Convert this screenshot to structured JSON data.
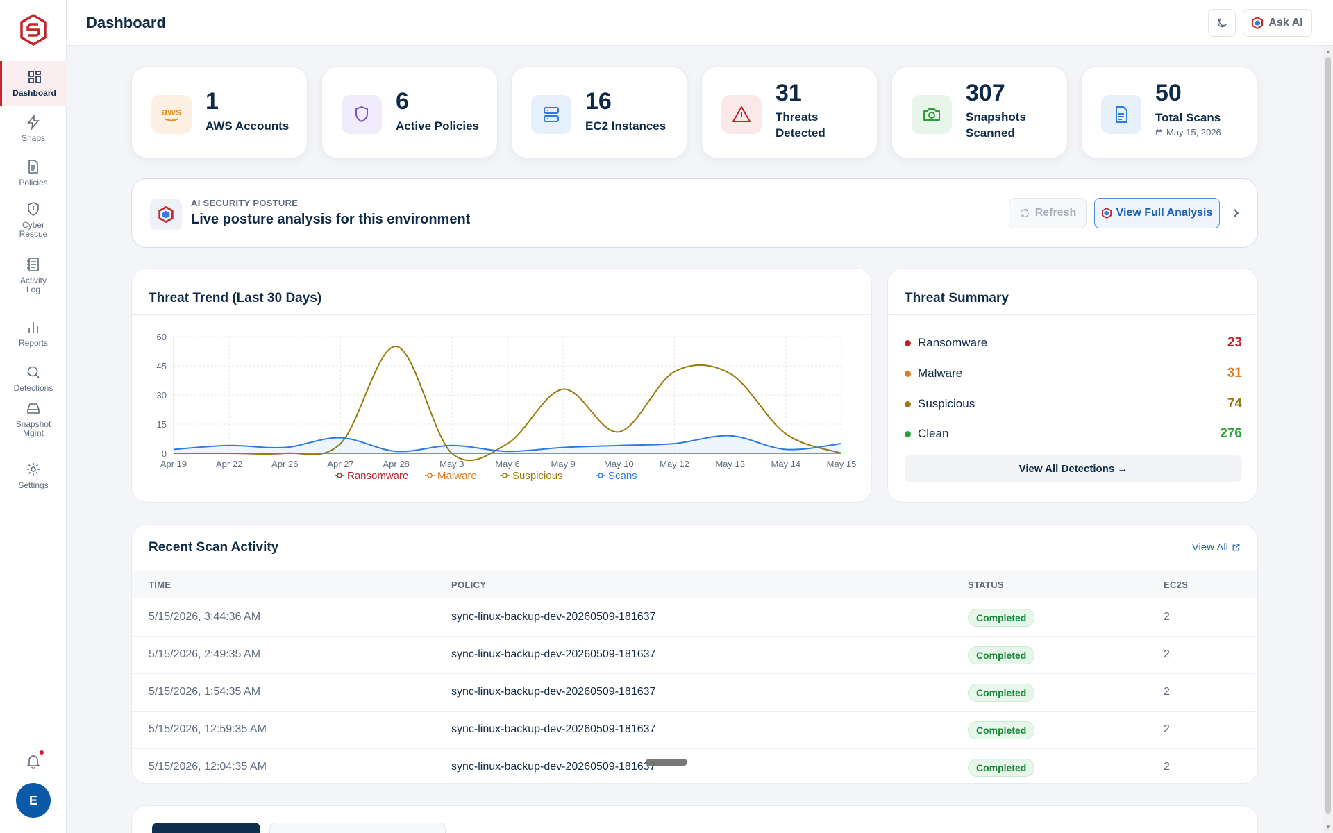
{
  "header": {
    "title": "Dashboard",
    "ask_ai_label": "Ask AI"
  },
  "sidebar": {
    "items": [
      {
        "label": "Dashboard",
        "icon": "grid-icon",
        "active": true
      },
      {
        "label": "Snaps",
        "icon": "bolt-icon"
      },
      {
        "label": "Policies",
        "icon": "document-icon"
      },
      {
        "label": "Cyber\nRescue",
        "icon": "shield-alert-icon"
      },
      {
        "label": "Activity\nLog",
        "icon": "log-icon"
      },
      {
        "label": "Reports",
        "icon": "bar-chart-icon"
      },
      {
        "label": "Detections",
        "icon": "search-icon"
      },
      {
        "label": "Snapshot\nMgmt",
        "icon": "drive-icon"
      },
      {
        "label": "Settings",
        "icon": "gear-icon"
      }
    ],
    "avatar_initial": "E"
  },
  "stats": [
    {
      "value": "1",
      "label": "AWS Accounts",
      "icon": "aws-icon",
      "icon_text": "aws"
    },
    {
      "value": "6",
      "label": "Active Policies",
      "icon": "shield-icon"
    },
    {
      "value": "16",
      "label": "EC2 Instances",
      "icon": "server-icon"
    },
    {
      "value": "31",
      "label": "Threats Detected",
      "icon": "warning-icon"
    },
    {
      "value": "307",
      "label": "Snapshots Scanned",
      "icon": "camera-icon"
    },
    {
      "value": "50",
      "label": "Total Scans",
      "icon": "file-icon",
      "date": "May 15, 2026"
    }
  ],
  "posture": {
    "kicker": "AI SECURITY POSTURE",
    "title": "Live posture analysis for this environment",
    "refresh_label": "Refresh",
    "view_label": "View Full Analysis"
  },
  "threat_trend": {
    "title": "Threat Trend (Last 30 Days)"
  },
  "chart_data": {
    "type": "line",
    "title": "Threat Trend (Last 30 Days)",
    "x": [
      "Apr 19",
      "Apr 22",
      "Apr 26",
      "Apr 27",
      "Apr 28",
      "May 3",
      "May 6",
      "May 9",
      "May 10",
      "May 12",
      "May 13",
      "May 14",
      "May 15"
    ],
    "ylim": [
      0,
      60
    ],
    "yticks": [
      0,
      15,
      30,
      45,
      60
    ],
    "series": [
      {
        "name": "Ransomware",
        "color": "#c0202a",
        "values": [
          0,
          0,
          0,
          0,
          0,
          0,
          0,
          0,
          0,
          0,
          0,
          0,
          0
        ]
      },
      {
        "name": "Malware",
        "color": "#e07b1f",
        "values": [
          0,
          0,
          0,
          0,
          0,
          0,
          0,
          0,
          0,
          0,
          0,
          0,
          0
        ]
      },
      {
        "name": "Suspicious",
        "color": "#9a7a0a",
        "values": [
          0,
          0,
          0,
          5,
          55,
          0,
          5,
          33,
          11,
          42,
          41,
          10,
          0
        ]
      },
      {
        "name": "Scans",
        "color": "#2c7be5",
        "values": [
          2,
          4,
          3,
          8,
          1,
          4,
          1,
          3,
          4,
          5,
          9,
          2,
          5
        ]
      }
    ],
    "grid": true,
    "legend": "bottom"
  },
  "threat_summary": {
    "title": "Threat Summary",
    "rows": [
      {
        "name": "Ransomware",
        "count": "23",
        "color": "#c0202a"
      },
      {
        "name": "Malware",
        "count": "31",
        "color": "#e07b1f"
      },
      {
        "name": "Suspicious",
        "count": "74",
        "color": "#9a7a0a"
      },
      {
        "name": "Clean",
        "count": "276",
        "color": "#2e9e3a"
      }
    ],
    "view_all_label": "View All Detections →"
  },
  "recent": {
    "title": "Recent Scan Activity",
    "view_all_label": "View All",
    "columns": [
      "TIME",
      "POLICY",
      "STATUS",
      "EC2S"
    ],
    "rows": [
      {
        "time": "5/15/2026, 3:44:36 AM",
        "policy": "sync-linux-backup-dev-20260509-181637",
        "status": "Completed",
        "ec2s": "2"
      },
      {
        "time": "5/15/2026, 2:49:35 AM",
        "policy": "sync-linux-backup-dev-20260509-181637",
        "status": "Completed",
        "ec2s": "2"
      },
      {
        "time": "5/15/2026, 1:54:35 AM",
        "policy": "sync-linux-backup-dev-20260509-181637",
        "status": "Completed",
        "ec2s": "2"
      },
      {
        "time": "5/15/2026, 12:59:35 AM",
        "policy": "sync-linux-backup-dev-20260509-181637",
        "status": "Completed",
        "ec2s": "2"
      },
      {
        "time": "5/15/2026, 12:04:35 AM",
        "policy": "sync-linux-backup-dev-20260509-181637",
        "status": "Completed",
        "ec2s": "2"
      }
    ]
  },
  "colors": {
    "brand": "#c1272d",
    "accent": "#1d62b5",
    "text": "#0f2a46"
  }
}
